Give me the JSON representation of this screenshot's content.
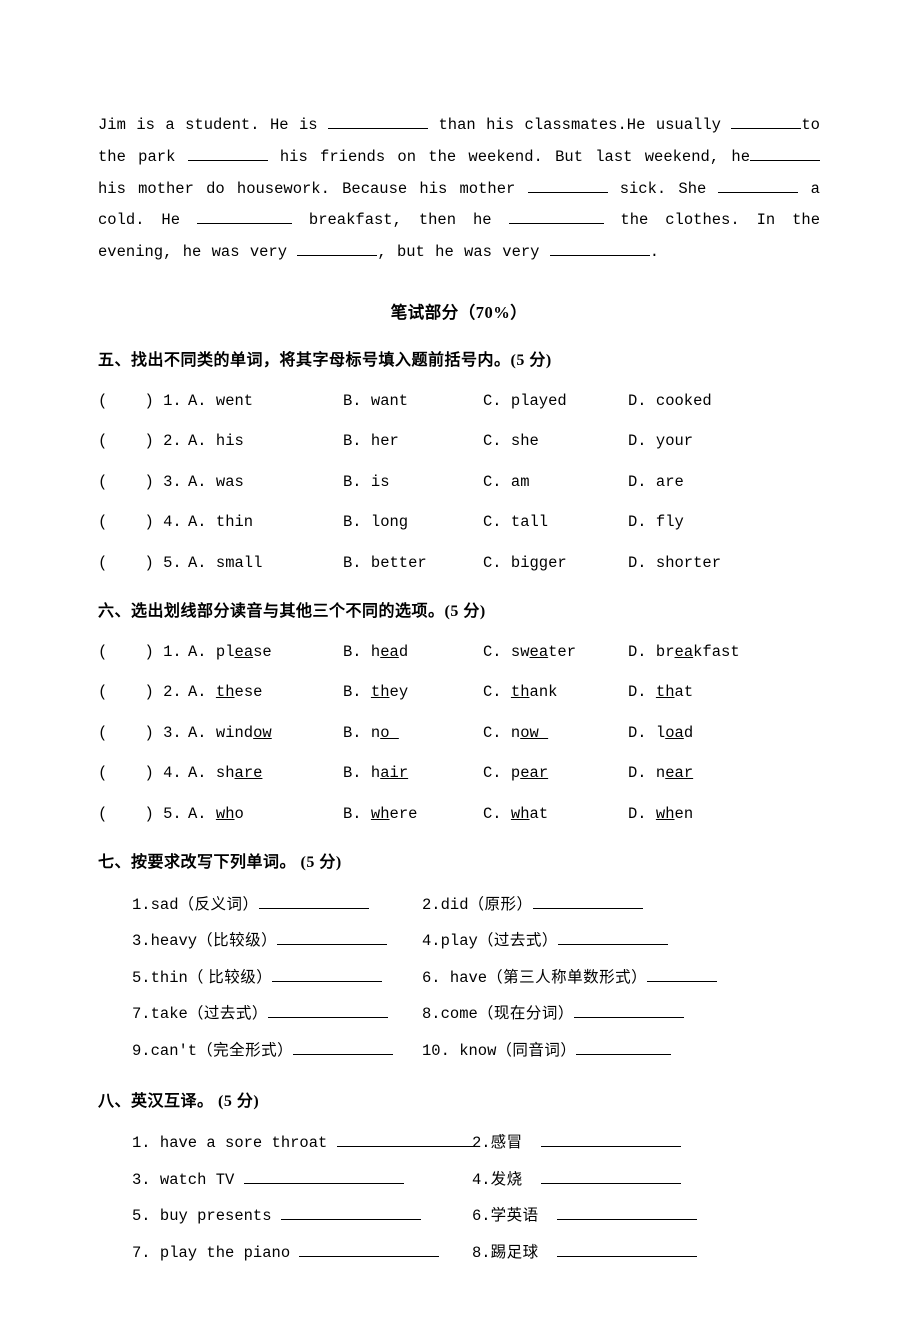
{
  "passage": {
    "t1": "Jim is a student. He is ",
    "t2": " than his classmates.He usually ",
    "t3": "to the park ",
    "t4": " his friends on the weekend. But last weekend, he",
    "t5": " his mother do housework. Because his mother ",
    "t6": " sick. She ",
    "t7": " a cold. He ",
    "t8": " breakfast, then he ",
    "t9": " the clothes. In the evening, he was very ",
    "t10": ", but he was very ",
    "t11": "."
  },
  "section_center": "笔试部分（70%）",
  "s5": {
    "heading": "五、找出不同类的单词，将其字母标号填入题前括号内。(5 分)",
    "rows": [
      {
        "n": "1",
        "a": "went",
        "b": "want",
        "c": "played",
        "d": "cooked"
      },
      {
        "n": "2",
        "a": "his",
        "b": "her",
        "c": "she",
        "d": "your"
      },
      {
        "n": "3",
        "a": "was",
        "b": "is",
        "c": "am",
        "d": "are"
      },
      {
        "n": "4",
        "a": "thin",
        "b": "long",
        "c": "tall",
        "d": "fly"
      },
      {
        "n": "5",
        "a": "small",
        "b": "better",
        "c": "bigger",
        "d": "shorter"
      }
    ]
  },
  "s6": {
    "heading": "六、选出划线部分读音与其他三个不同的选项。(5 分)",
    "rows": [
      {
        "n": "1",
        "a": {
          "p": "pl",
          "u": "ea",
          "s": "se"
        },
        "b": {
          "p": "h",
          "u": "ea",
          "s": "d"
        },
        "c": {
          "p": "sw",
          "u": "ea",
          "s": "ter"
        },
        "d": {
          "p": "br",
          "u": "ea",
          "s": "kfast"
        }
      },
      {
        "n": "2",
        "a": {
          "p": "",
          "u": "th",
          "s": "ese"
        },
        "b": {
          "p": "",
          "u": "th",
          "s": "ey"
        },
        "c": {
          "p": "",
          "u": "th",
          "s": "ank"
        },
        "d": {
          "p": "",
          "u": "th",
          "s": "at"
        }
      },
      {
        "n": "3",
        "a": {
          "p": "wind",
          "u": "ow",
          "s": ""
        },
        "b": {
          "p": "n",
          "u": "o ",
          "s": ""
        },
        "c": {
          "p": "n",
          "u": "ow ",
          "s": ""
        },
        "d": {
          "p": "l",
          "u": "oa",
          "s": "d"
        }
      },
      {
        "n": "4",
        "a": {
          "p": "sh",
          "u": "are",
          "s": ""
        },
        "b": {
          "p": "h",
          "u": "air",
          "s": ""
        },
        "c": {
          "p": "p",
          "u": "ear",
          "s": ""
        },
        "d": {
          "p": "n",
          "u": "ear",
          "s": ""
        }
      },
      {
        "n": "5",
        "a": {
          "p": "",
          "u": "wh",
          "s": "o"
        },
        "b": {
          "p": "",
          "u": "wh",
          "s": "ere"
        },
        "c": {
          "p": "",
          "u": "wh",
          "s": "at"
        },
        "d": {
          "p": "",
          "u": "wh",
          "s": "en"
        }
      }
    ]
  },
  "s7": {
    "heading": "七、按要求改写下列单词。 (5 分)",
    "rows": [
      {
        "l": {
          "n": "1",
          "w": "sad",
          "h": "反义词"
        },
        "r": {
          "n": "2",
          "w": "did",
          "h": "原形"
        }
      },
      {
        "l": {
          "n": "3",
          "w": "heavy",
          "h": "比较级"
        },
        "r": {
          "n": "4",
          "w": "play",
          "h": "过去式"
        }
      },
      {
        "l": {
          "n": "5",
          "w": "thin",
          "h": " 比较级"
        },
        "r": {
          "n": "6",
          "w": " have",
          "h": "第三人称单数形式"
        }
      },
      {
        "l": {
          "n": "7",
          "w": "take",
          "h": "过去式"
        },
        "r": {
          "n": "8",
          "w": "come",
          "h": "现在分词"
        }
      },
      {
        "l": {
          "n": "9",
          "w": "can't",
          "h": "完全形式"
        },
        "r": {
          "n": "10",
          "w": " know",
          "h": "同音词"
        }
      }
    ]
  },
  "s8": {
    "heading": "八、英汉互译。 (5 分)",
    "rows": [
      {
        "l": {
          "n": "1",
          "t": "have a sore throat"
        },
        "r": {
          "n": "2",
          "t": "感冒"
        }
      },
      {
        "l": {
          "n": "3",
          "t": "watch TV"
        },
        "r": {
          "n": "4",
          "t": "发烧"
        }
      },
      {
        "l": {
          "n": "5",
          "t": "buy presents"
        },
        "r": {
          "n": "6",
          "t": "学英语"
        }
      },
      {
        "l": {
          "n": "7",
          "t": "play the piano"
        },
        "r": {
          "n": "8",
          "t": "踢足球"
        }
      }
    ]
  }
}
